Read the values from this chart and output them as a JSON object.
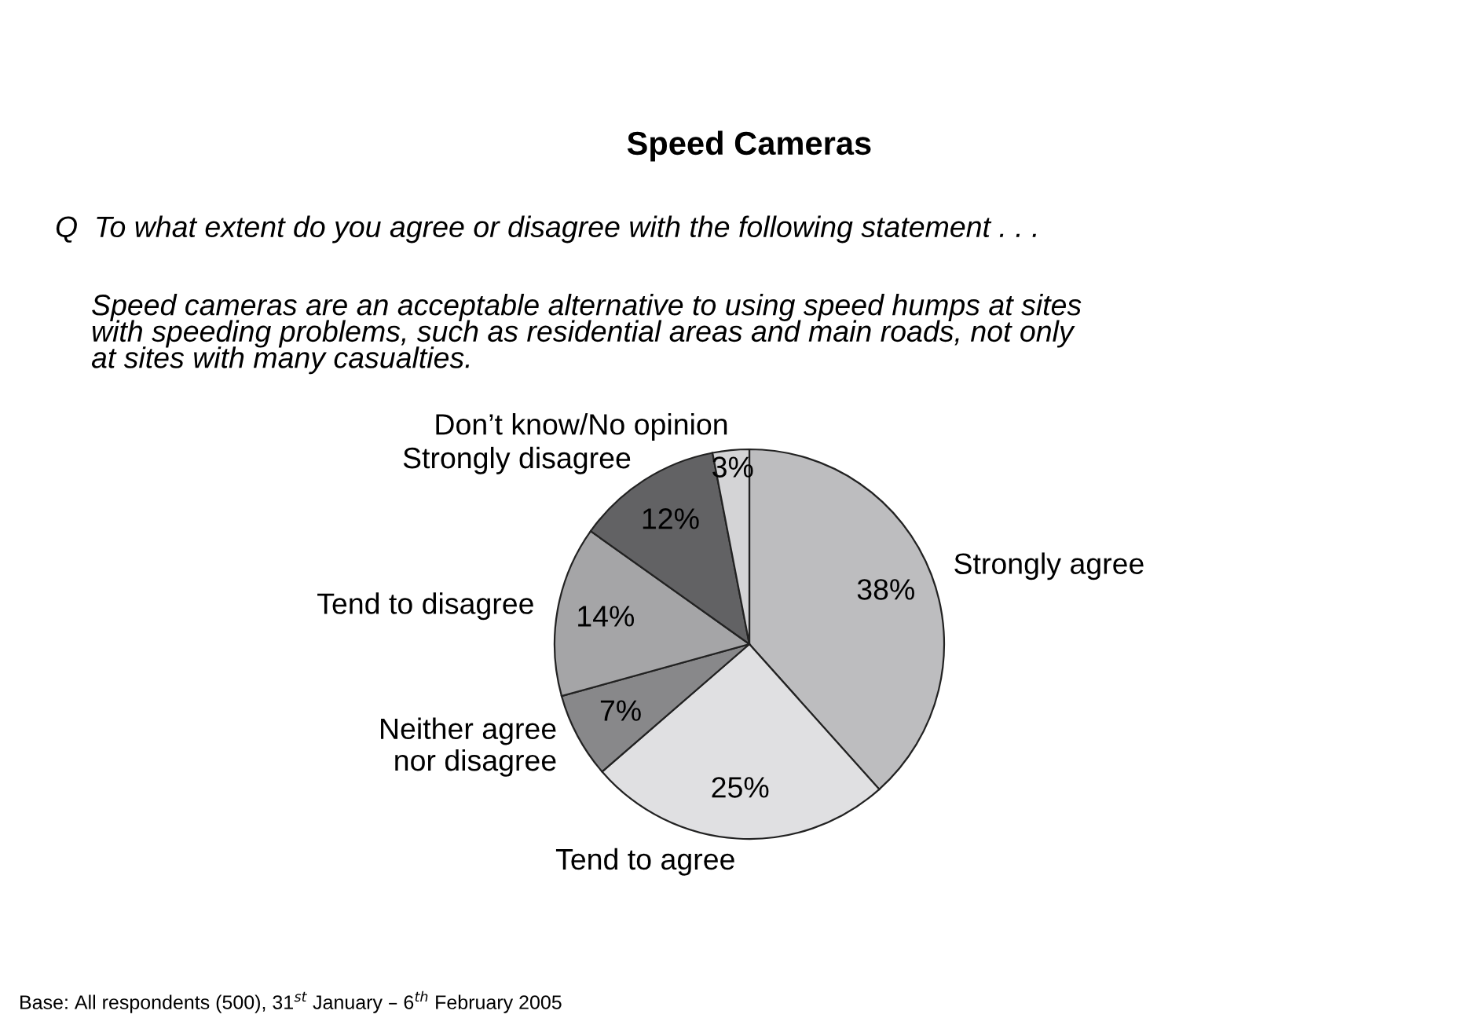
{
  "chart_data": {
    "type": "pie",
    "title": "Speed Cameras",
    "subtitle": "Q  To what extent do you agree or disagree with the following statement . . .",
    "categories": [
      "Strongly agree",
      "Tend to agree",
      "Neither agree\nnor disagree",
      "Tend to disagree",
      "Strongly disagree",
      "Don’t know/No opinion"
    ],
    "values": [
      38,
      25,
      7,
      14,
      12,
      3
    ],
    "value_labels": [
      "38%",
      "25%",
      "7%",
      "14%",
      "12%",
      "3%"
    ],
    "colors": [
      "#bdbdbf",
      "#e0e0e2",
      "#88888a",
      "#a5a5a7",
      "#626264",
      "#d4d4d6"
    ],
    "annotations": [
      "Speed cameras are an acceptable alternative to using speed humps at sites\nwith speeding problems, such as residential areas and main roads, not only\nat sites with many casualties.",
      "Base: All respondents (500), 31$^{st}$ January – 6$^{th}$ February 2005"
    ]
  }
}
